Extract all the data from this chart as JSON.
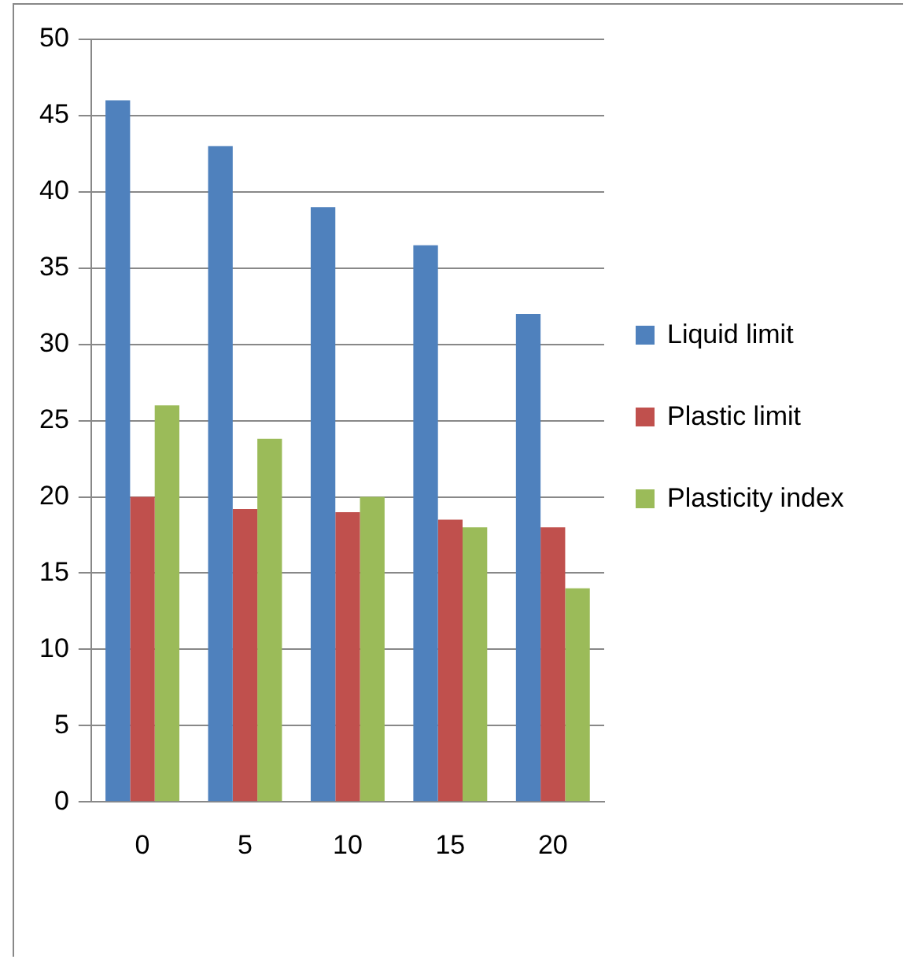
{
  "chart_data": {
    "type": "bar",
    "categories": [
      "0",
      "5",
      "10",
      "15",
      "20"
    ],
    "series": [
      {
        "name": "Liquid limit",
        "color": "#4f81bd",
        "values": [
          46,
          43,
          39,
          36.5,
          32
        ]
      },
      {
        "name": "Plastic limit",
        "color": "#c0504d",
        "values": [
          20,
          19.2,
          19,
          18.5,
          18
        ]
      },
      {
        "name": "Plasticity index",
        "color": "#9bbb59",
        "values": [
          26,
          23.8,
          20,
          18,
          14
        ]
      }
    ],
    "ylim": [
      0,
      50
    ],
    "yticks": [
      0,
      5,
      10,
      15,
      20,
      25,
      30,
      35,
      40,
      45,
      50
    ],
    "grid": "y",
    "legend": "right"
  }
}
